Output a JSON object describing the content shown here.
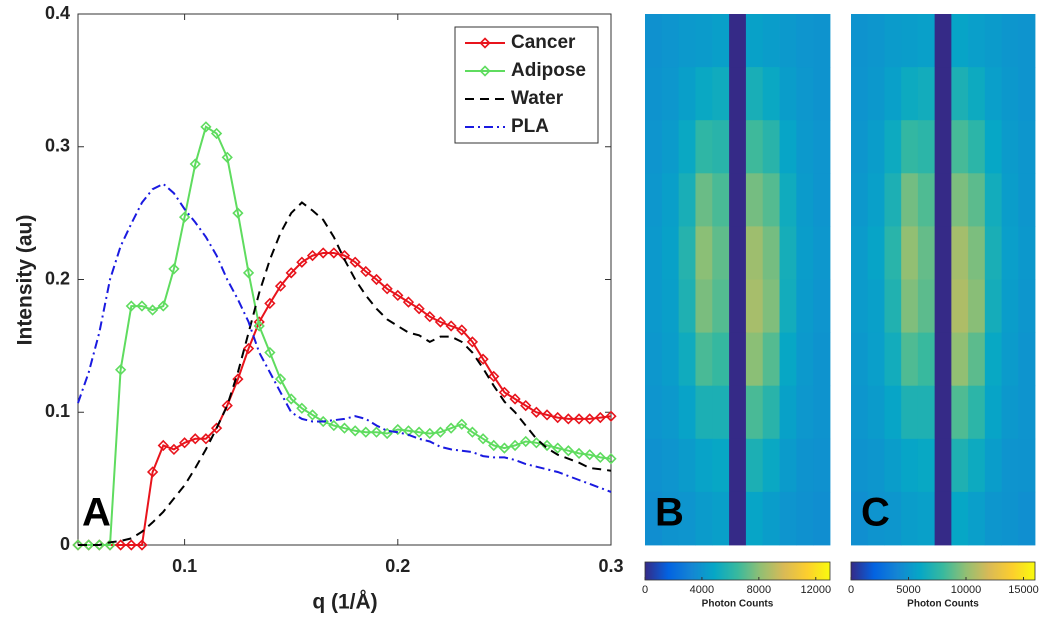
{
  "chart_data": [
    {
      "type": "line",
      "xlabel": "q (1/Å)",
      "ylabel": "Intensity (au)",
      "annotation": "A",
      "xlim": [
        0.05,
        0.3
      ],
      "ylim": [
        0,
        0.4
      ],
      "xticks": [
        0.1,
        0.2,
        0.3
      ],
      "yticks": [
        0,
        0.1,
        0.2,
        0.3,
        0.4
      ],
      "legend": "upper right",
      "x": [
        0.05,
        0.055,
        0.06,
        0.065,
        0.07,
        0.075,
        0.08,
        0.085,
        0.09,
        0.095,
        0.1,
        0.105,
        0.11,
        0.115,
        0.12,
        0.125,
        0.13,
        0.135,
        0.14,
        0.145,
        0.15,
        0.155,
        0.16,
        0.165,
        0.17,
        0.175,
        0.18,
        0.185,
        0.19,
        0.195,
        0.2,
        0.205,
        0.21,
        0.215,
        0.22,
        0.225,
        0.23,
        0.235,
        0.24,
        0.245,
        0.25,
        0.255,
        0.26,
        0.265,
        0.27,
        0.275,
        0.28,
        0.285,
        0.29,
        0.295,
        0.3
      ],
      "series": [
        {
          "name": "Cancer",
          "color": "#e8141c",
          "marker": true,
          "dash": "solid",
          "values": [
            0,
            0,
            0,
            0,
            0,
            0,
            0,
            0.055,
            0.075,
            0.072,
            0.077,
            0.08,
            0.08,
            0.088,
            0.105,
            0.125,
            0.148,
            0.168,
            0.182,
            0.195,
            0.205,
            0.213,
            0.218,
            0.22,
            0.22,
            0.218,
            0.213,
            0.206,
            0.2,
            0.193,
            0.188,
            0.183,
            0.178,
            0.172,
            0.168,
            0.165,
            0.162,
            0.153,
            0.14,
            0.127,
            0.115,
            0.11,
            0.105,
            0.1,
            0.098,
            0.096,
            0.095,
            0.095,
            0.095,
            0.096,
            0.097
          ]
        },
        {
          "name": "Adipose",
          "color": "#5fdc5f",
          "marker": true,
          "dash": "solid",
          "values": [
            0,
            0,
            0,
            0,
            0.132,
            0.18,
            0.18,
            0.177,
            0.18,
            0.208,
            0.247,
            0.287,
            0.315,
            0.31,
            0.292,
            0.25,
            0.205,
            0.165,
            0.145,
            0.125,
            0.11,
            0.103,
            0.098,
            0.093,
            0.09,
            0.088,
            0.086,
            0.085,
            0.085,
            0.084,
            0.087,
            0.086,
            0.085,
            0.084,
            0.085,
            0.088,
            0.091,
            0.085,
            0.08,
            0.075,
            0.073,
            0.075,
            0.078,
            0.077,
            0.075,
            0.073,
            0.071,
            0.069,
            0.068,
            0.066,
            0.065
          ]
        },
        {
          "name": "Water",
          "color": "#000000",
          "marker": false,
          "dash": "dashed",
          "values": [
            0,
            0,
            0,
            0.002,
            0.003,
            0.005,
            0.01,
            0.017,
            0.025,
            0.035,
            0.045,
            0.058,
            0.072,
            0.088,
            0.105,
            0.13,
            0.16,
            0.19,
            0.215,
            0.235,
            0.25,
            0.258,
            0.252,
            0.245,
            0.232,
            0.215,
            0.2,
            0.188,
            0.178,
            0.17,
            0.165,
            0.16,
            0.158,
            0.153,
            0.157,
            0.157,
            0.153,
            0.145,
            0.133,
            0.12,
            0.108,
            0.1,
            0.09,
            0.08,
            0.073,
            0.068,
            0.065,
            0.062,
            0.058,
            0.057,
            0.056
          ]
        },
        {
          "name": "PLA",
          "color": "#1a1ae0",
          "marker": false,
          "dash": "dashdot",
          "values": [
            0.107,
            0.13,
            0.16,
            0.2,
            0.225,
            0.242,
            0.258,
            0.268,
            0.272,
            0.265,
            0.253,
            0.243,
            0.232,
            0.218,
            0.2,
            0.185,
            0.168,
            0.145,
            0.13,
            0.115,
            0.1,
            0.095,
            0.093,
            0.093,
            0.094,
            0.095,
            0.097,
            0.095,
            0.09,
            0.086,
            0.085,
            0.083,
            0.08,
            0.078,
            0.074,
            0.072,
            0.071,
            0.07,
            0.067,
            0.066,
            0.066,
            0.064,
            0.061,
            0.059,
            0.057,
            0.055,
            0.052,
            0.049,
            0.046,
            0.043,
            0.04
          ]
        }
      ]
    },
    {
      "type": "heatmap",
      "annotation": "B",
      "colormap": "parula",
      "clim": [
        0,
        13000
      ],
      "colorbar_ticks": [
        0,
        4000,
        8000,
        12000
      ],
      "colorbar_label": "Photon Counts",
      "values": [
        [
          3800,
          4000,
          4200,
          4300,
          4500,
          0,
          4600,
          4400,
          4200,
          4000,
          3900
        ],
        [
          3900,
          4100,
          4500,
          5000,
          5200,
          0,
          5500,
          5000,
          4400,
          4100,
          3900
        ],
        [
          4000,
          4300,
          5000,
          6200,
          6000,
          0,
          6600,
          6000,
          4800,
          4200,
          4000
        ],
        [
          4100,
          4500,
          5500,
          7400,
          6800,
          0,
          7600,
          7000,
          5200,
          4300,
          4000
        ],
        [
          4200,
          4600,
          5900,
          8000,
          7200,
          0,
          8400,
          7600,
          5400,
          4400,
          4100
        ],
        [
          4200,
          4500,
          5700,
          7700,
          7000,
          0,
          8600,
          7800,
          5300,
          4300,
          4000
        ],
        [
          4100,
          4400,
          5200,
          6800,
          6400,
          0,
          8000,
          7000,
          4900,
          4200,
          3900
        ],
        [
          4000,
          4200,
          4700,
          5600,
          5600,
          0,
          6800,
          6000,
          4600,
          4100,
          3900
        ],
        [
          3800,
          4000,
          4300,
          4700,
          4900,
          0,
          5600,
          5000,
          4300,
          3900,
          3800
        ],
        [
          3700,
          3900,
          4000,
          4300,
          4500,
          0,
          4800,
          4400,
          4000,
          3800,
          3700
        ]
      ]
    },
    {
      "type": "heatmap",
      "annotation": "C",
      "colormap": "parula",
      "clim": [
        0,
        16000
      ],
      "colorbar_ticks": [
        0,
        5000,
        10000,
        15000
      ],
      "colorbar_label": "Photon Counts",
      "values": [
        [
          4800,
          5000,
          5300,
          5400,
          5600,
          0,
          5800,
          5500,
          5300,
          5000,
          4900
        ],
        [
          4900,
          5100,
          5600,
          6300,
          6500,
          0,
          6900,
          6300,
          5500,
          5100,
          4900
        ],
        [
          5000,
          5400,
          6300,
          7800,
          7500,
          0,
          8300,
          7500,
          6000,
          5300,
          5000
        ],
        [
          5100,
          5600,
          6900,
          9300,
          8500,
          0,
          9500,
          8800,
          6500,
          5400,
          5000
        ],
        [
          5300,
          5800,
          7400,
          10000,
          9000,
          0,
          10500,
          9500,
          6800,
          5500,
          5100
        ],
        [
          5300,
          5600,
          7100,
          9600,
          8800,
          0,
          10800,
          9800,
          6600,
          5400,
          5000
        ],
        [
          5100,
          5500,
          6500,
          8500,
          8000,
          0,
          10000,
          8800,
          6100,
          5300,
          4900
        ],
        [
          5000,
          5300,
          5900,
          7000,
          7000,
          0,
          8500,
          7500,
          5800,
          5100,
          4900
        ],
        [
          4800,
          5000,
          5400,
          5900,
          6100,
          0,
          7000,
          6300,
          5400,
          4900,
          4800
        ],
        [
          4600,
          4900,
          5000,
          5400,
          5600,
          0,
          6000,
          5500,
          5000,
          4800,
          4600
        ]
      ]
    }
  ]
}
